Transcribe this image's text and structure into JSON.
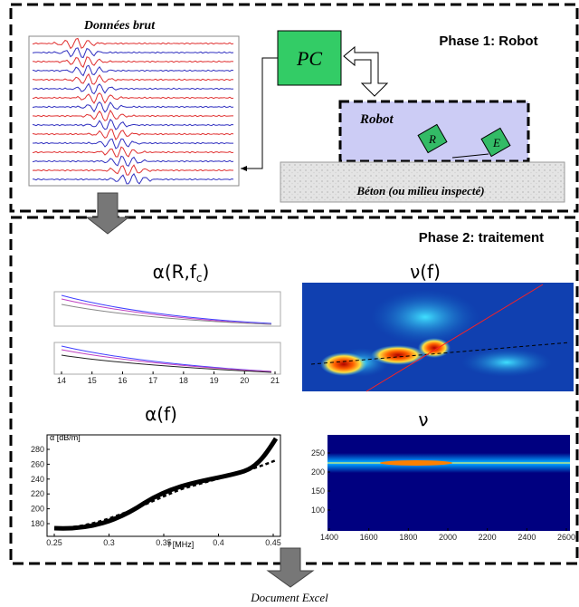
{
  "phase1": {
    "title": "Phase 1: Robot",
    "raw_data": {
      "title": "Données brut"
    },
    "pc": "PC",
    "robot": {
      "label": "Robot",
      "receiver": "R",
      "emitter": "E"
    },
    "medium": "Béton (ou milieu inspecté)"
  },
  "phase2": {
    "title": "Phase 2: traitement",
    "alpha_r": {
      "title_main": "α(R,f",
      "title_sub": "c",
      "title_end": ")",
      "xticks": [
        14,
        15,
        16,
        17,
        18,
        19,
        20,
        21
      ]
    },
    "nu_f": {
      "title": "ν(f)"
    },
    "alpha_f": {
      "title": "α(f)",
      "ylabel": "α [dB/m]",
      "xlabel": "f [MHz]",
      "yticks": [
        280,
        260,
        240,
        220,
        200,
        180
      ],
      "xticks": [
        0.25,
        0.3,
        0.35,
        0.4,
        0.45
      ]
    },
    "nu": {
      "title": "ν",
      "yticks": [
        250,
        200,
        150,
        100
      ],
      "xticks": [
        1400,
        1600,
        1800,
        2000,
        2200,
        2400,
        2600
      ]
    }
  },
  "output": "Document Excel"
}
